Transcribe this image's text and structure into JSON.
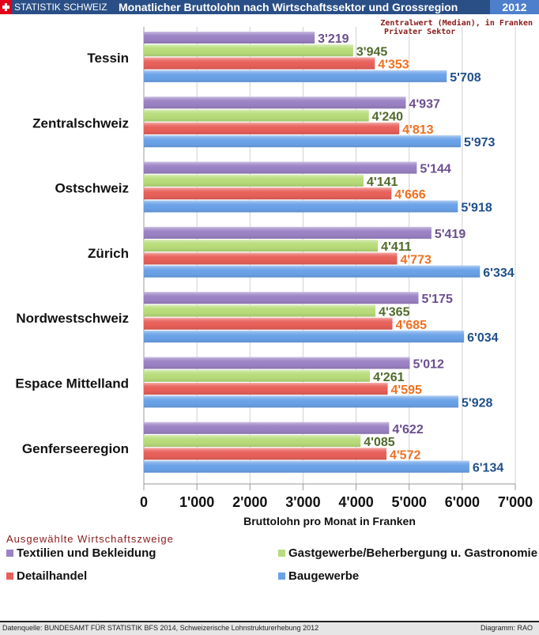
{
  "header": {
    "brand": "STATISTIK SCHWEIZ",
    "title": "Monatlicher Bruttolohn nach Wirtschaftssektor und Grossregion",
    "year": "2012"
  },
  "notes": [
    "Zentralwert (Median), in Franken",
    "Privater Sektor"
  ],
  "legend_title": "Ausgewählte Wirtschaftszweige",
  "footer": {
    "source": "Datenquelle: BUNDESAMT FÜR STATISTIK BFS 2014, Schweizerische Lohnstrukturerhebung 2012",
    "credit": "Diagramm: RAO"
  },
  "chart_data": {
    "type": "bar",
    "orientation": "horizontal",
    "categories": [
      "Tessin",
      "Zentralschweiz",
      "Ostschweiz",
      "Zürich",
      "Nordwestschweiz",
      "Espace  Mittelland",
      "Genferseeregion"
    ],
    "series": [
      {
        "name": "Textilien und Bekleidung",
        "color": "#9b82c4",
        "label_color": "#6b4f8f",
        "values": [
          3219,
          4937,
          5144,
          5419,
          5175,
          5012,
          4622
        ],
        "labels": [
          "3'219",
          "4'937",
          "5'144",
          "5'419",
          "5'175",
          "5'012",
          "4'622"
        ]
      },
      {
        "name": "Gastgewerbe/Beherbergung u. Gastronomie",
        "color": "#b8dc7a",
        "label_color": "#4f6a2a",
        "values": [
          3945,
          4240,
          4141,
          4411,
          4365,
          4261,
          4085
        ],
        "labels": [
          "3'945",
          "4'240",
          "4'141",
          "4'411",
          "4'365",
          "4'261",
          "4'085"
        ]
      },
      {
        "name": "Detailhandel",
        "color": "#e8605a",
        "label_color": "#f07020",
        "values": [
          4353,
          4813,
          4666,
          4773,
          4685,
          4595,
          4572
        ],
        "labels": [
          "4'353",
          "4'813",
          "4'666",
          "4'773",
          "4'685",
          "4'595",
          "4'572"
        ]
      },
      {
        "name": "Baugewerbe",
        "color": "#6aa2e8",
        "label_color": "#1f4f8a",
        "values": [
          5708,
          5973,
          5918,
          6334,
          6034,
          5928,
          6134
        ],
        "labels": [
          "5'708",
          "5'973",
          "5'918",
          "6'334",
          "6'034",
          "5'928",
          "6'134"
        ]
      }
    ],
    "xlim": [
      0,
      7000
    ],
    "xticks": [
      0,
      1000,
      2000,
      3000,
      4000,
      5000,
      6000,
      7000
    ],
    "xtick_labels": [
      "0",
      "1'000",
      "2'000",
      "3'000",
      "4'000",
      "5'000",
      "6'000",
      "7'000"
    ],
    "xlabel": "Bruttolohn pro Monat in Franken",
    "grid": true
  }
}
